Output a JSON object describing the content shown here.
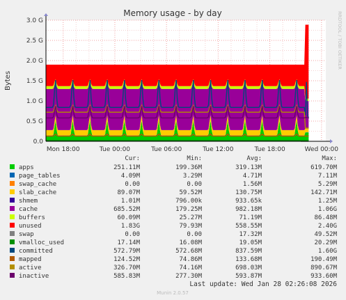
{
  "chart_data": {
    "type": "area",
    "title": "Memory usage - by day",
    "ylabel": "Bytes",
    "side_label": "RRDTOOL / TOBI OETIKER",
    "footer": "Munin 2.0.57",
    "last_update": "Last update: Wed Jan 28 02:26:08 2026",
    "x_range_hours": [
      -26,
      6.5
    ],
    "x_ticks": [
      {
        "label": "Mon 18:00",
        "h": -24
      },
      {
        "label": "Tue 00:00",
        "h": -18
      },
      {
        "label": "Tue 06:00",
        "h": -12
      },
      {
        "label": "Tue 12:00",
        "h": -6
      },
      {
        "label": "Tue 18:00",
        "h": 0
      },
      {
        "label": "Wed 00:00",
        "h": 6
      }
    ],
    "y_range_gb": [
      0,
      3.0
    ],
    "y_ticks": [
      {
        "label": "0.0",
        "v": 0
      },
      {
        "label": "0.5 G",
        "v": 0.5
      },
      {
        "label": "1.0 G",
        "v": 1.0
      },
      {
        "label": "1.5 G",
        "v": 1.5
      },
      {
        "label": "2.0 G",
        "v": 2.0
      },
      {
        "label": "2.5 G",
        "v": 2.5
      },
      {
        "label": "3.0 G",
        "v": 3.0
      }
    ],
    "grid": true,
    "legend_headers": [
      "Cur:",
      "Min:",
      "Avg:",
      "Max:"
    ],
    "series": [
      {
        "name": "apps",
        "color": "#00cc00",
        "cur": "251.11M",
        "min": "199.36M",
        "avg": "319.13M",
        "max": "619.70M"
      },
      {
        "name": "page_tables",
        "color": "#0066b3",
        "cur": "4.09M",
        "min": "3.29M",
        "avg": "4.71M",
        "max": "7.11M"
      },
      {
        "name": "swap_cache",
        "color": "#ff8000",
        "cur": "0.00",
        "min": "0.00",
        "avg": "1.56M",
        "max": "5.29M"
      },
      {
        "name": "slab_cache",
        "color": "#ffcc00",
        "cur": "89.07M",
        "min": "59.52M",
        "avg": "130.75M",
        "max": "142.71M"
      },
      {
        "name": "shmem",
        "color": "#330099",
        "cur": "1.01M",
        "min": "796.00k",
        "avg": "933.65k",
        "max": "1.25M"
      },
      {
        "name": "cache",
        "color": "#990099",
        "cur": "685.52M",
        "min": "179.25M",
        "avg": "982.18M",
        "max": "1.06G"
      },
      {
        "name": "buffers",
        "color": "#ccff00",
        "cur": "60.09M",
        "min": "25.27M",
        "avg": "71.19M",
        "max": "86.48M"
      },
      {
        "name": "unused",
        "color": "#ff0000",
        "cur": "1.83G",
        "min": "79.93M",
        "avg": "558.55M",
        "max": "2.40G"
      },
      {
        "name": "swap",
        "color": "#808080",
        "cur": "0.00",
        "min": "0.00",
        "avg": "17.32M",
        "max": "49.52M"
      },
      {
        "name": "vmalloc_used",
        "color": "#008f00",
        "cur": "17.14M",
        "min": "16.08M",
        "avg": "19.05M",
        "max": "20.29M"
      },
      {
        "name": "committed",
        "color": "#00487d",
        "cur": "572.79M",
        "min": "572.68M",
        "avg": "837.59M",
        "max": "1.60G"
      },
      {
        "name": "mapped",
        "color": "#b35a00",
        "cur": "124.52M",
        "min": "74.86M",
        "avg": "133.68M",
        "max": "190.49M"
      },
      {
        "name": "active",
        "color": "#b38f00",
        "cur": "326.70M",
        "min": "74.16M",
        "avg": "698.03M",
        "max": "890.67M"
      },
      {
        "name": "inactive",
        "color": "#6b006b",
        "cur": "585.83M",
        "min": "277.30M",
        "avg": "593.87M",
        "max": "933.60M"
      }
    ]
  }
}
